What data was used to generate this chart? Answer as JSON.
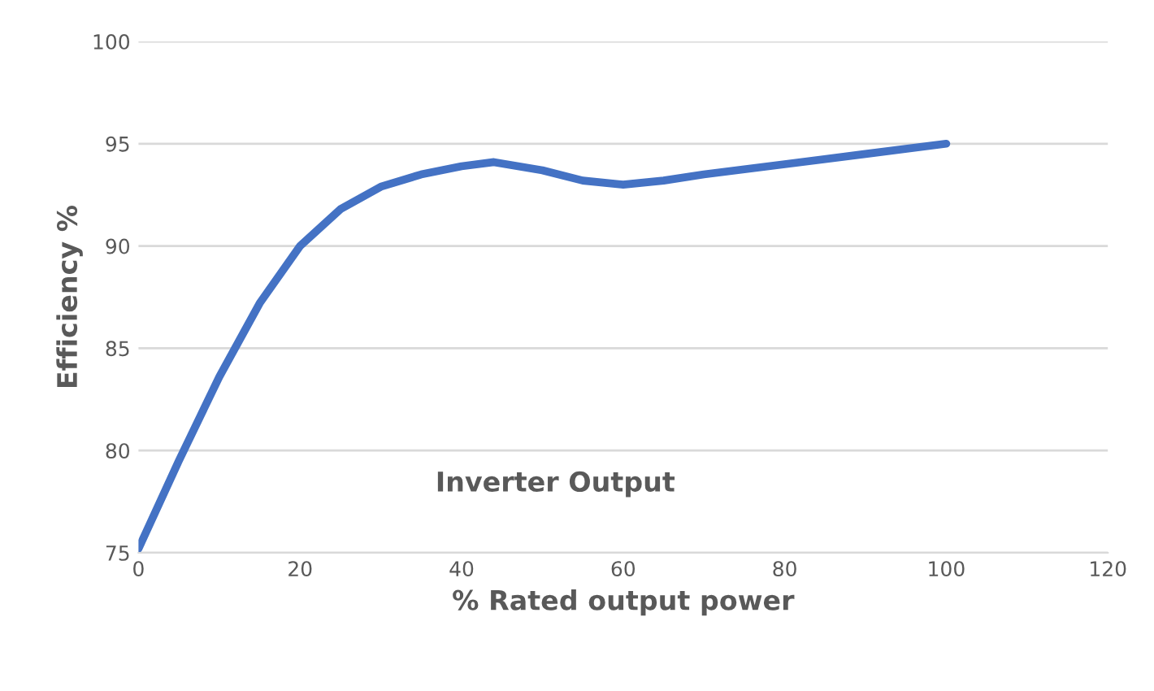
{
  "chart_data": {
    "type": "line",
    "xlabel": "% Rated output power",
    "ylabel": "Efficiency %",
    "annotations": [
      "Inverter Output"
    ],
    "x": [
      0,
      5,
      10,
      15,
      20,
      25,
      30,
      35,
      40,
      44,
      50,
      55,
      60,
      65,
      70,
      80,
      90,
      100
    ],
    "series": [
      {
        "color": "#4472c4",
        "values": [
          75.2,
          79.5,
          83.6,
          87.2,
          90.0,
          91.8,
          92.9,
          93.5,
          93.9,
          94.1,
          93.7,
          93.2,
          93.0,
          93.2,
          93.5,
          94.0,
          94.5,
          95.0
        ]
      }
    ],
    "xlim": [
      0,
      120
    ],
    "xticks": [
      0,
      20,
      40,
      60,
      80,
      100,
      120
    ],
    "ylim": [
      75,
      100
    ],
    "yticks": [
      75,
      80,
      85,
      90,
      95,
      100
    ],
    "grid": "y",
    "marker": "none",
    "line_style": "solid"
  }
}
